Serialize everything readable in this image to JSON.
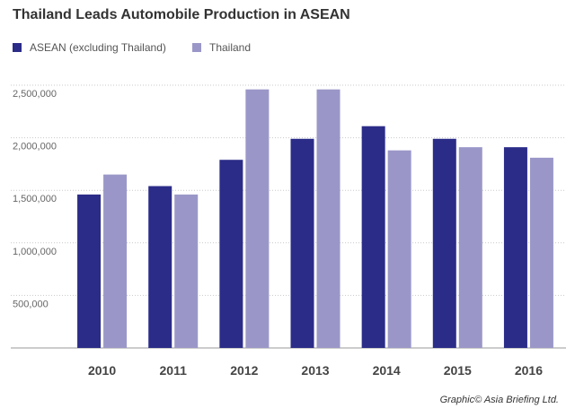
{
  "chart_data": {
    "type": "bar",
    "title": "Thailand Leads Automobile Production in ASEAN",
    "xlabel": "",
    "ylabel": "",
    "categories": [
      "2010",
      "2011",
      "2012",
      "2013",
      "2014",
      "2015",
      "2016"
    ],
    "series": [
      {
        "name": "ASEAN (excluding Thailand)",
        "color": "#2b2c88",
        "values": [
          1460000,
          1540000,
          1790000,
          1990000,
          2110000,
          1990000,
          1910000
        ]
      },
      {
        "name": "Thailand",
        "color": "#9a97c8",
        "values": [
          1650000,
          1460000,
          2460000,
          2460000,
          1880000,
          1910000,
          1810000
        ]
      }
    ],
    "ylim": [
      0,
      2500000
    ],
    "yticks": [
      "500,000",
      "1,000,000",
      "1,500,000",
      "2,000,000",
      "2,500,000"
    ],
    "ytick_values": [
      500000,
      1000000,
      1500000,
      2000000,
      2500000
    ],
    "grid": true,
    "legend": "top-left"
  },
  "credit": "Graphic© Asia Briefing Ltd."
}
